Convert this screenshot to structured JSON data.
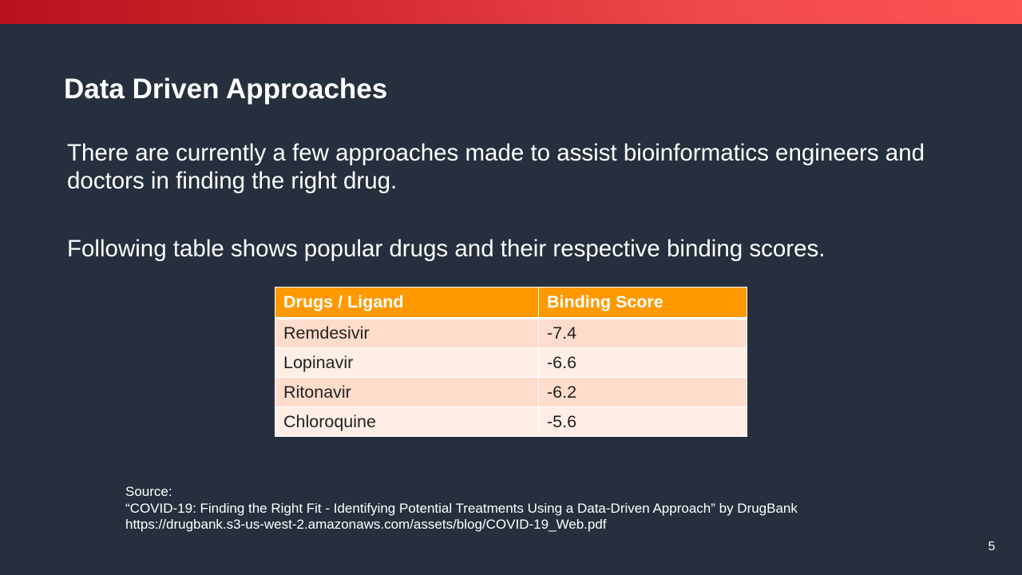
{
  "slide": {
    "title": "Data Driven Approaches",
    "paragraph_1": "There are currently a few approaches made to assist bioinformatics engineers and doctors in finding the right drug.",
    "paragraph_2": "Following table shows popular drugs and their respective binding scores.",
    "page_number": "5"
  },
  "table": {
    "headers": [
      "Drugs / Ligand",
      "Binding Score"
    ],
    "rows": [
      [
        "Remdesivir",
        "-7.4"
      ],
      [
        "Lopinavir",
        "-6.6"
      ],
      [
        "Ritonavir",
        "-6.2"
      ],
      [
        "Chloroquine",
        "-5.6"
      ]
    ]
  },
  "source": {
    "label": "Source:",
    "citation": "“COVID-19: Finding the Right Fit - Identifying Potential Treatments Using a Data-Driven Approach” by DrugBank",
    "url": "https://drugbank.s3-us-west-2.amazonaws.com/assets/blog/COVID-19_Web.pdf"
  },
  "colors": {
    "background": "#252f3d",
    "top_bar_start": "#b8121d",
    "top_bar_end": "#ff5252",
    "table_header": "#ff9900",
    "table_row_odd": "#ffdccb",
    "table_row_even": "#ffeee6"
  }
}
